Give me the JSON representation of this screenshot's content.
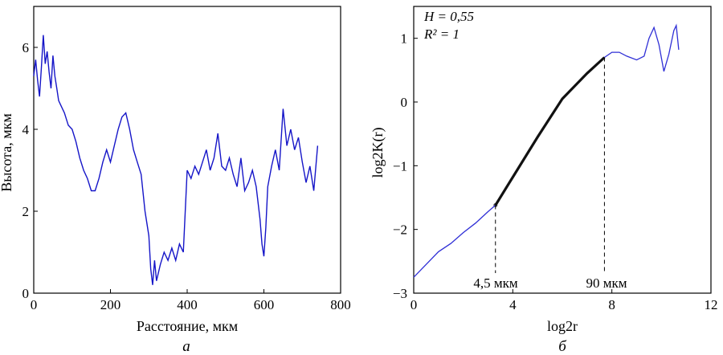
{
  "figure": {
    "panel_a_label": "а",
    "panel_b_label": "б"
  },
  "chart_data": [
    {
      "type": "line",
      "color": "#1515c8",
      "xlabel": "Расстояние, мкм",
      "ylabel": "Высота, мкм",
      "xlim": [
        0,
        800
      ],
      "ylim": [
        0,
        7
      ],
      "xticks": [
        "0",
        "200",
        "400",
        "600",
        "800"
      ],
      "yticks": [
        "0",
        "2",
        "4",
        "6"
      ],
      "series": [
        {
          "x": [
            0,
            5,
            10,
            15,
            20,
            25,
            30,
            35,
            40,
            45,
            50,
            55,
            60,
            65,
            70,
            80,
            90,
            100,
            110,
            120,
            130,
            140,
            150,
            160,
            170,
            180,
            190,
            200,
            210,
            220,
            230,
            240,
            250,
            260,
            270,
            280,
            290,
            300,
            305,
            310,
            315,
            320,
            330,
            340,
            350,
            360,
            370,
            380,
            390,
            400,
            410,
            420,
            430,
            440,
            450,
            460,
            470,
            480,
            490,
            500,
            510,
            520,
            530,
            540,
            550,
            560,
            570,
            580,
            590,
            595,
            600,
            605,
            610,
            620,
            630,
            640,
            650,
            660,
            670,
            680,
            690,
            700,
            710,
            720,
            730,
            740
          ],
          "y": [
            5.3,
            5.7,
            5.2,
            4.8,
            5.5,
            6.3,
            5.6,
            5.9,
            5.4,
            5.0,
            5.8,
            5.3,
            5.0,
            4.7,
            4.6,
            4.4,
            4.1,
            4.0,
            3.7,
            3.3,
            3.0,
            2.8,
            2.5,
            2.5,
            2.8,
            3.2,
            3.5,
            3.2,
            3.6,
            4.0,
            4.3,
            4.4,
            4.0,
            3.5,
            3.2,
            2.9,
            2.0,
            1.4,
            0.6,
            0.2,
            0.8,
            0.3,
            0.7,
            1.0,
            0.8,
            1.1,
            0.8,
            1.2,
            1.0,
            3.0,
            2.8,
            3.1,
            2.9,
            3.2,
            3.5,
            3.0,
            3.3,
            3.9,
            3.1,
            3.0,
            3.3,
            2.9,
            2.6,
            3.3,
            2.5,
            2.7,
            3.0,
            2.6,
            1.8,
            1.2,
            0.9,
            1.6,
            2.6,
            3.1,
            3.5,
            3.0,
            4.5,
            3.6,
            4.0,
            3.5,
            3.8,
            3.2,
            2.7,
            3.1,
            2.5,
            3.6
          ]
        }
      ]
    },
    {
      "type": "line",
      "color": "#2f2fd6",
      "xlabel": "log2r",
      "ylabel": "log2K(r)",
      "xlim": [
        0,
        12
      ],
      "ylim": [
        -3,
        1.5
      ],
      "xticks": [
        "0",
        "4",
        "8",
        "12"
      ],
      "yticks": [
        "−3",
        "−2",
        "−1",
        "0",
        "1"
      ],
      "annotations": {
        "H_label": "H = 0,55",
        "R2_label": "R² = 1",
        "left_cut_label": "4,5 мкм",
        "right_cut_label": "90 мкм",
        "left_cut_x": 3.3,
        "right_cut_x": 7.7
      },
      "series": [
        {
          "name": "curve",
          "x": [
            0,
            0.5,
            1.0,
            1.5,
            2.0,
            2.5,
            3.0,
            3.3,
            4.0,
            5.0,
            6.0,
            7.0,
            7.7,
            8.0,
            8.3,
            8.6,
            9.0,
            9.3,
            9.5,
            9.7,
            9.9,
            10.1,
            10.3,
            10.5,
            10.6,
            10.7
          ],
          "y": [
            -2.75,
            -2.55,
            -2.35,
            -2.22,
            -2.05,
            -1.9,
            -1.72,
            -1.62,
            -1.18,
            -0.55,
            0.05,
            0.45,
            0.7,
            0.78,
            0.78,
            0.72,
            0.66,
            0.72,
            1.0,
            1.17,
            0.9,
            0.48,
            0.75,
            1.12,
            1.2,
            0.82
          ]
        }
      ]
    }
  ]
}
